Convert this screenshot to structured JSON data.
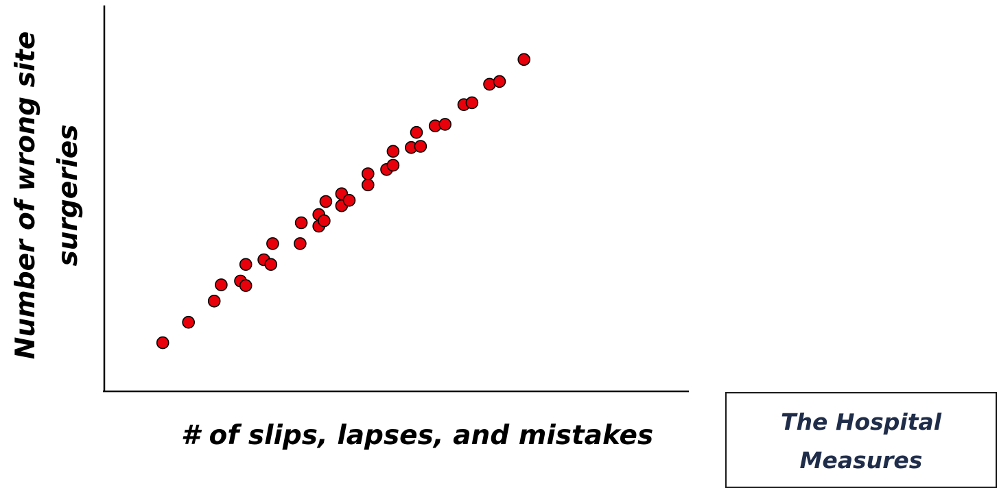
{
  "chart_data": {
    "type": "scatter",
    "title": "",
    "xlabel": "# of slips, lapses, and mistakes",
    "ylabel_line1": "Number of wrong site",
    "ylabel_line2": "surgeries",
    "xlim": [
      0,
      100
    ],
    "ylim": [
      0,
      100
    ],
    "grid": false,
    "axis_color": "#000000",
    "marker_color": "#e8000b",
    "marker_edge_color": "#000000",
    "points": [
      {
        "x": 10.0,
        "y": 12.6
      },
      {
        "x": 14.4,
        "y": 17.9
      },
      {
        "x": 18.8,
        "y": 23.4
      },
      {
        "x": 20.0,
        "y": 27.6
      },
      {
        "x": 23.3,
        "y": 28.6
      },
      {
        "x": 24.2,
        "y": 27.4
      },
      {
        "x": 24.2,
        "y": 32.9
      },
      {
        "x": 27.3,
        "y": 34.1
      },
      {
        "x": 28.5,
        "y": 32.9
      },
      {
        "x": 28.8,
        "y": 38.3
      },
      {
        "x": 33.5,
        "y": 38.3
      },
      {
        "x": 33.7,
        "y": 43.7
      },
      {
        "x": 36.7,
        "y": 42.8
      },
      {
        "x": 36.7,
        "y": 45.8
      },
      {
        "x": 37.6,
        "y": 44.2
      },
      {
        "x": 37.9,
        "y": 49.2
      },
      {
        "x": 40.6,
        "y": 48.1
      },
      {
        "x": 40.6,
        "y": 51.2
      },
      {
        "x": 41.9,
        "y": 49.5
      },
      {
        "x": 45.1,
        "y": 53.5
      },
      {
        "x": 45.1,
        "y": 56.4
      },
      {
        "x": 48.3,
        "y": 57.5
      },
      {
        "x": 49.4,
        "y": 58.6
      },
      {
        "x": 49.4,
        "y": 62.2
      },
      {
        "x": 52.5,
        "y": 63.2
      },
      {
        "x": 53.4,
        "y": 67.1
      },
      {
        "x": 54.1,
        "y": 63.5
      },
      {
        "x": 56.6,
        "y": 68.8
      },
      {
        "x": 58.3,
        "y": 69.2
      },
      {
        "x": 61.5,
        "y": 74.3
      },
      {
        "x": 62.9,
        "y": 74.8
      },
      {
        "x": 65.9,
        "y": 79.6
      },
      {
        "x": 67.6,
        "y": 80.3
      },
      {
        "x": 71.8,
        "y": 86.0
      }
    ]
  },
  "legend_box": {
    "text": "The Hospital\nMeasures"
  }
}
